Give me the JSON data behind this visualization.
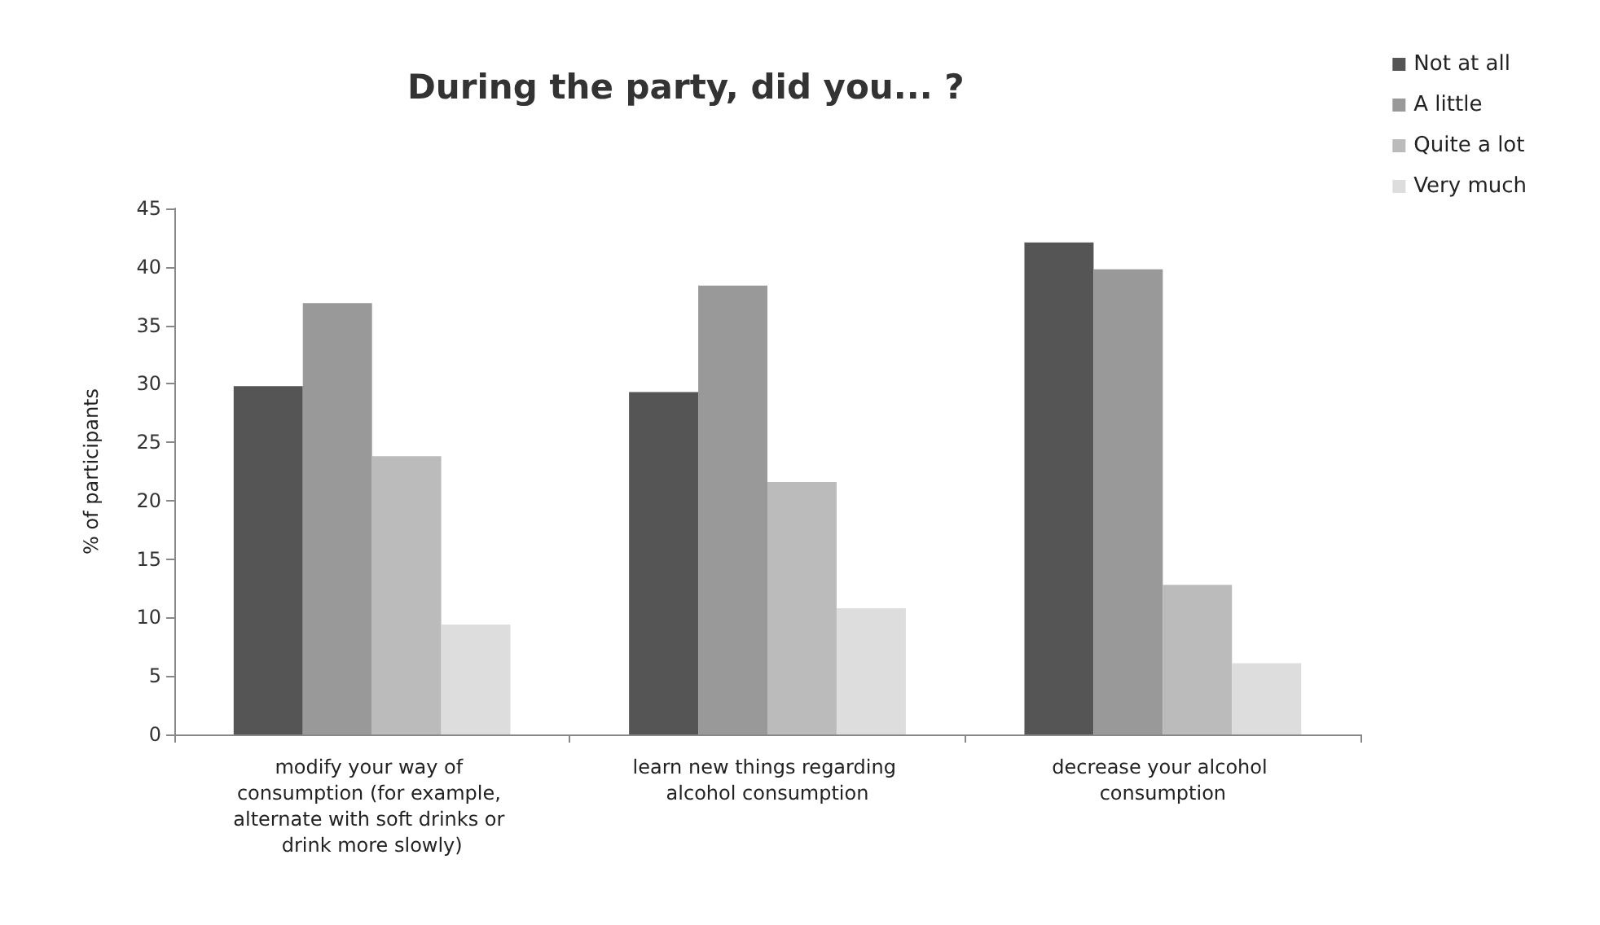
{
  "chart_data": {
    "type": "bar",
    "title": "During the party, did you... ?",
    "ylabel": "% of participants",
    "categories": [
      "modify your way of consumption (for example, alternate with soft drinks or drink more slowly)",
      "learn new things regarding alcohol consumption",
      "decrease your alcohol consumption"
    ],
    "series": [
      {
        "name": "Not at all",
        "color": "#555555",
        "values": [
          29.8,
          29.3,
          42.1
        ]
      },
      {
        "name": "A little",
        "color": "#999999",
        "values": [
          36.9,
          38.4,
          39.8
        ]
      },
      {
        "name": "Quite a lot",
        "color": "#bbbbbb",
        "values": [
          23.8,
          21.6,
          12.8
        ]
      },
      {
        "name": "Very much",
        "color": "#dddddd",
        "values": [
          9.4,
          10.8,
          6.1
        ]
      }
    ],
    "ylim": [
      0,
      45
    ],
    "yticks": [
      0,
      5,
      10,
      15,
      20,
      25,
      30,
      35,
      40,
      45
    ],
    "grid": false,
    "legend": "top right"
  }
}
